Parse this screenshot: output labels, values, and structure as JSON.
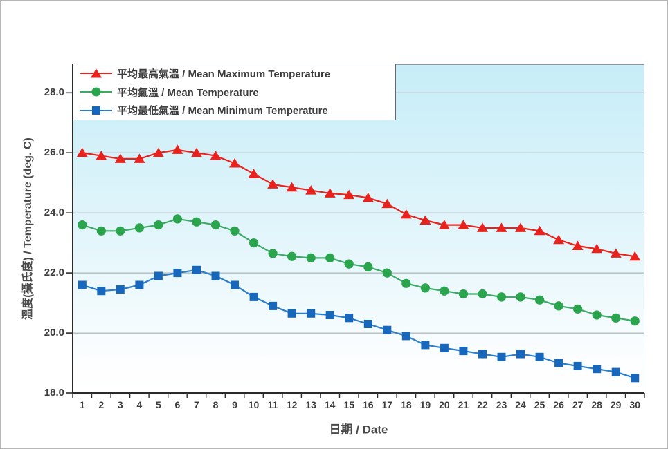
{
  "chart_data": {
    "type": "line",
    "title": "",
    "xlabel": "日期 / Date",
    "ylabel": "溫度(攝氏度) / Temperature (deg. C)",
    "x": [
      1,
      2,
      3,
      4,
      5,
      6,
      7,
      8,
      9,
      10,
      11,
      12,
      13,
      14,
      15,
      16,
      17,
      18,
      19,
      20,
      21,
      22,
      23,
      24,
      25,
      26,
      27,
      28,
      29,
      30
    ],
    "ylim": [
      18,
      28.95
    ],
    "y_ticks": [
      18,
      20,
      22,
      24,
      26,
      28
    ],
    "y_tick_labels": [
      "18.0",
      "20.0",
      "22.0",
      "24.0",
      "26.0",
      "28.0"
    ],
    "grid": true,
    "legend_position": "top-left-inside",
    "plot_background": {
      "top": "#c7edf8",
      "bottom": "#ffffff"
    },
    "grid_color": "#9ba4a8",
    "axis_color": "#2a2a2a",
    "series": [
      {
        "id": "mean-maximum-temperature",
        "name": "平均最高氣溫 / Mean Maximum Temperature",
        "marker": "triangle",
        "color": "#e8231d",
        "line_color": "#e8231d",
        "values": [
          26.0,
          25.9,
          25.8,
          25.8,
          26.0,
          26.1,
          26.0,
          25.9,
          25.65,
          25.3,
          24.95,
          24.85,
          24.75,
          24.65,
          24.6,
          24.5,
          24.3,
          23.95,
          23.75,
          23.6,
          23.6,
          23.5,
          23.5,
          23.5,
          23.4,
          23.1,
          22.9,
          22.8,
          22.65,
          22.55
        ]
      },
      {
        "id": "mean-temperature",
        "name": "平均氣溫 / Mean Temperature",
        "marker": "circle",
        "color": "#2aa44d",
        "line_color": "#3dab67",
        "values": [
          23.6,
          23.4,
          23.4,
          23.5,
          23.6,
          23.8,
          23.7,
          23.6,
          23.4,
          23.0,
          22.65,
          22.55,
          22.5,
          22.5,
          22.3,
          22.2,
          22.0,
          21.65,
          21.5,
          21.4,
          21.3,
          21.3,
          21.2,
          21.2,
          21.1,
          20.9,
          20.8,
          20.6,
          20.5,
          20.4
        ]
      },
      {
        "id": "mean-minimum-temperature",
        "name": "平均最低氣溫 / Mean Minimum Temperature",
        "marker": "square",
        "color": "#1768bd",
        "line_color": "#2b7dca",
        "values": [
          21.6,
          21.4,
          21.45,
          21.6,
          21.9,
          22.0,
          22.1,
          21.9,
          21.6,
          21.2,
          20.9,
          20.65,
          20.65,
          20.6,
          20.5,
          20.3,
          20.1,
          19.9,
          19.6,
          19.5,
          19.4,
          19.3,
          19.2,
          19.3,
          19.2,
          19.0,
          18.9,
          18.8,
          18.7,
          18.5
        ]
      }
    ]
  }
}
